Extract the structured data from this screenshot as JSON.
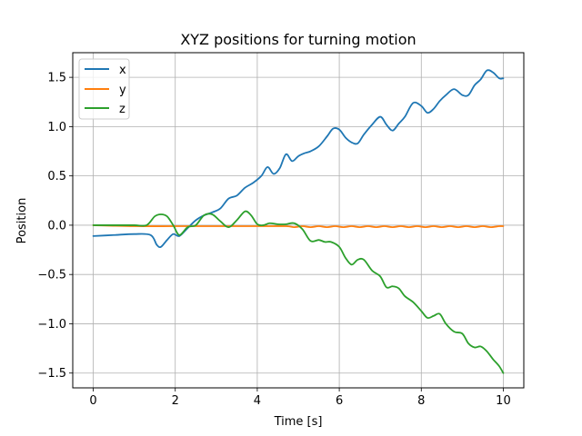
{
  "chart_data": {
    "type": "line",
    "title": "XYZ positions for turning motion",
    "xlabel": "Time [s]",
    "ylabel": "Position",
    "xlim": [
      -0.5,
      10.5
    ],
    "ylim": [
      -1.65,
      1.75
    ],
    "xticks": [
      0,
      2,
      4,
      6,
      8,
      10
    ],
    "xtick_labels": [
      "0",
      "2",
      "4",
      "6",
      "8",
      "10"
    ],
    "yticks": [
      -1.5,
      -1.0,
      -0.5,
      0.0,
      0.5,
      1.0,
      1.5
    ],
    "ytick_labels": [
      "−1.5",
      "−1.0",
      "−0.5",
      "0.0",
      "0.5",
      "1.0",
      "1.5"
    ],
    "grid": true,
    "legend_position": "top-left",
    "series": [
      {
        "name": "x",
        "color": "#1f77b4",
        "x": [
          0,
          0.5,
          1.0,
          1.4,
          1.55,
          1.65,
          1.8,
          1.95,
          2.1,
          2.3,
          2.5,
          2.7,
          2.9,
          3.1,
          3.3,
          3.5,
          3.7,
          3.9,
          4.1,
          4.25,
          4.4,
          4.55,
          4.7,
          4.85,
          5.0,
          5.15,
          5.3,
          5.5,
          5.7,
          5.85,
          6.0,
          6.15,
          6.3,
          6.45,
          6.6,
          6.8,
          7.0,
          7.15,
          7.3,
          7.45,
          7.6,
          7.8,
          8.0,
          8.15,
          8.3,
          8.45,
          8.6,
          8.8,
          9.0,
          9.15,
          9.3,
          9.45,
          9.6,
          9.75,
          9.9,
          10.0
        ],
        "y": [
          -0.11,
          -0.1,
          -0.09,
          -0.1,
          -0.2,
          -0.22,
          -0.15,
          -0.09,
          -0.11,
          -0.03,
          0.05,
          0.1,
          0.13,
          0.17,
          0.27,
          0.3,
          0.38,
          0.43,
          0.5,
          0.59,
          0.52,
          0.58,
          0.72,
          0.65,
          0.7,
          0.73,
          0.75,
          0.8,
          0.9,
          0.98,
          0.97,
          0.89,
          0.84,
          0.83,
          0.92,
          1.02,
          1.1,
          1.02,
          0.96,
          1.03,
          1.1,
          1.24,
          1.21,
          1.14,
          1.18,
          1.26,
          1.32,
          1.38,
          1.32,
          1.32,
          1.42,
          1.48,
          1.57,
          1.55,
          1.49,
          1.49
        ]
      },
      {
        "name": "y",
        "color": "#ff7f0e",
        "x": [
          0,
          1.0,
          2.0,
          3.0,
          4.0,
          4.7,
          4.9,
          5.1,
          5.3,
          5.5,
          5.7,
          5.9,
          6.1,
          6.3,
          6.5,
          6.7,
          6.9,
          7.1,
          7.3,
          7.5,
          7.7,
          7.9,
          8.1,
          8.3,
          8.5,
          8.7,
          8.9,
          9.1,
          9.3,
          9.5,
          9.7,
          9.9,
          10.0
        ],
        "y": [
          0.0,
          -0.01,
          -0.01,
          -0.01,
          -0.01,
          -0.01,
          -0.02,
          -0.01,
          -0.02,
          -0.01,
          -0.02,
          -0.01,
          -0.02,
          -0.01,
          -0.02,
          -0.01,
          -0.02,
          -0.01,
          -0.02,
          -0.01,
          -0.02,
          -0.01,
          -0.02,
          -0.01,
          -0.02,
          -0.01,
          -0.02,
          -0.01,
          -0.02,
          -0.01,
          -0.02,
          -0.01,
          -0.01
        ]
      },
      {
        "name": "z",
        "color": "#2ca02c",
        "x": [
          0,
          0.5,
          1.0,
          1.3,
          1.5,
          1.65,
          1.8,
          1.95,
          2.1,
          2.3,
          2.5,
          2.7,
          2.9,
          3.1,
          3.3,
          3.5,
          3.7,
          3.85,
          4.0,
          4.15,
          4.3,
          4.5,
          4.7,
          4.9,
          5.1,
          5.3,
          5.5,
          5.65,
          5.8,
          6.0,
          6.15,
          6.3,
          6.45,
          6.6,
          6.8,
          7.0,
          7.15,
          7.3,
          7.45,
          7.6,
          7.8,
          8.0,
          8.15,
          8.3,
          8.45,
          8.6,
          8.8,
          9.0,
          9.15,
          9.3,
          9.45,
          9.6,
          9.75,
          9.9,
          10.0
        ],
        "y": [
          0.0,
          0.0,
          0.0,
          0.0,
          0.09,
          0.11,
          0.09,
          0.0,
          -0.1,
          -0.02,
          0.0,
          0.1,
          0.11,
          0.04,
          -0.02,
          0.05,
          0.14,
          0.1,
          0.01,
          0.0,
          0.02,
          0.01,
          0.01,
          0.02,
          -0.04,
          -0.16,
          -0.15,
          -0.17,
          -0.17,
          -0.22,
          -0.33,
          -0.4,
          -0.35,
          -0.35,
          -0.46,
          -0.52,
          -0.63,
          -0.62,
          -0.64,
          -0.72,
          -0.78,
          -0.87,
          -0.94,
          -0.92,
          -0.9,
          -1.0,
          -1.08,
          -1.1,
          -1.2,
          -1.24,
          -1.23,
          -1.28,
          -1.36,
          -1.43,
          -1.5
        ]
      }
    ]
  }
}
